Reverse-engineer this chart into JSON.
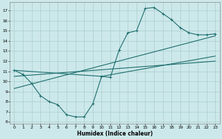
{
  "xlabel": "Humidex (Indice chaleur)",
  "bg_color": "#cce8ea",
  "grid_color": "#aacccc",
  "line_color": "#1a6b6b",
  "xlim": [
    -0.5,
    23.5
  ],
  "ylim": [
    5.8,
    17.8
  ],
  "xticks": [
    0,
    1,
    2,
    3,
    4,
    5,
    6,
    7,
    8,
    9,
    10,
    11,
    12,
    13,
    14,
    15,
    16,
    17,
    18,
    19,
    20,
    21,
    22,
    23
  ],
  "yticks": [
    6,
    7,
    8,
    9,
    10,
    11,
    12,
    13,
    14,
    15,
    16,
    17
  ],
  "line1_x": [
    0,
    1,
    2,
    3,
    4,
    5,
    6,
    7,
    8,
    9,
    10,
    11,
    12,
    13,
    14,
    15,
    16,
    17,
    18,
    19,
    20,
    21,
    22,
    23
  ],
  "line1_y": [
    11.1,
    10.7,
    9.8,
    8.6,
    8.0,
    7.7,
    6.7,
    6.5,
    6.5,
    7.8,
    10.5,
    10.4,
    13.1,
    14.8,
    15.0,
    17.2,
    17.3,
    16.7,
    16.1,
    15.3,
    14.8,
    14.6,
    14.6,
    14.7
  ],
  "line2_x": [
    0,
    10,
    23
  ],
  "line2_y": [
    11.1,
    10.5,
    12.5
  ],
  "line3_x": [
    0,
    23
  ],
  "line3_y": [
    10.5,
    12.0
  ],
  "line4_x": [
    0,
    23
  ],
  "line4_y": [
    9.3,
    14.5
  ]
}
